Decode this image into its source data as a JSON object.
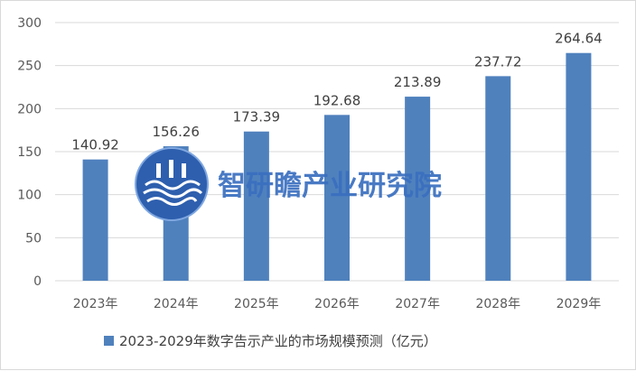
{
  "chart_data": {
    "type": "bar",
    "categories": [
      "2023年",
      "2024年",
      "2025年",
      "2026年",
      "2027年",
      "2028年",
      "2029年"
    ],
    "series": [
      {
        "name": "2023-2029年数字告示产业的市场规模预测（亿元）",
        "values": [
          140.92,
          156.26,
          173.39,
          192.68,
          213.89,
          237.72,
          264.64
        ],
        "labels": [
          "140.92",
          "156.26",
          "173.39",
          "192.68",
          "213.89",
          "237.72",
          "264.64"
        ],
        "color": "#4f81bd"
      }
    ],
    "ylim": [
      0,
      300
    ],
    "yticks": [
      0,
      50,
      100,
      150,
      200,
      250,
      300
    ],
    "grid": true,
    "legend": "bottom"
  },
  "watermark": {
    "text": "智研瞻产业研究院",
    "logo_color": "#2e5fae"
  }
}
